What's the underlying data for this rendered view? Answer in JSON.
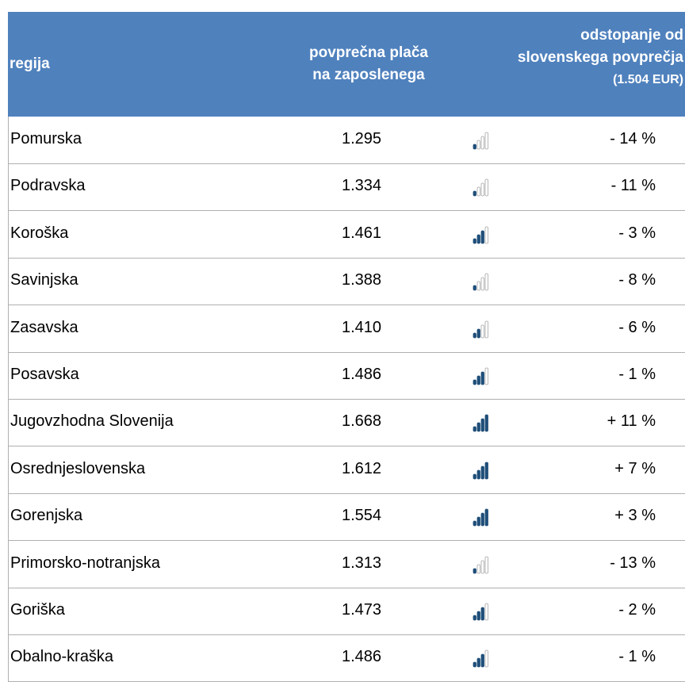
{
  "table": {
    "header": [
      "regija",
      [
        "povprečna plača",
        "na zaposlenega"
      ],
      [
        "odstopanje od",
        "slovenskega povprečja",
        "(1.504 EUR)"
      ]
    ],
    "rows": [
      [
        "Pomurska",
        "1.295",
        "- 14 %"
      ],
      [
        "Podravska",
        "1.334",
        "- 11 %"
      ],
      [
        "Koroška",
        "1.461",
        "- 3 %"
      ],
      [
        "Savinjska",
        "1.388",
        "- 8 %"
      ],
      [
        "Zasavska",
        "1.410",
        "- 6 %"
      ],
      [
        "Posavska",
        "1.486",
        "- 1 %"
      ],
      [
        "Jugovzhodna Slovenija",
        "1.668",
        "+ 11 %"
      ],
      [
        "Osrednjeslovenska",
        "1.612",
        "+ 7 %"
      ],
      [
        "Gorenjska",
        "1.554",
        "+ 3 %"
      ],
      [
        "Primorsko-notranjska",
        "1.313",
        "- 13 %"
      ],
      [
        "Goriška",
        "1.473",
        "- 2 %"
      ],
      [
        "Obalno-kraška",
        "1.486",
        "- 1 %"
      ]
    ]
  }
}
